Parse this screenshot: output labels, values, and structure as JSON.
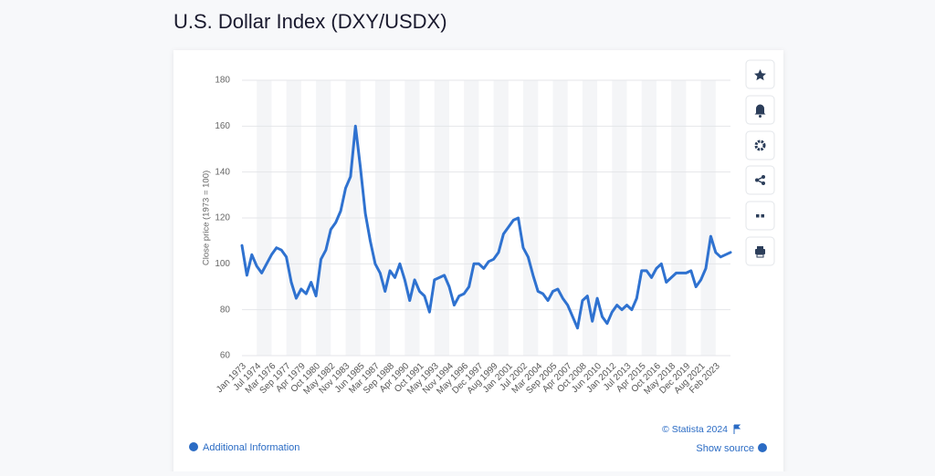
{
  "chart_data": {
    "type": "line",
    "title": "U.S. Dollar Index (DXY/USDX)",
    "ylabel": "Close price (1973 = 100)",
    "categories": [
      "Jan 1973",
      null,
      null,
      "Jul 1974",
      null,
      null,
      "Mar 1976",
      null,
      null,
      "Sep 1977",
      null,
      null,
      "Apr 1979",
      null,
      null,
      "Oct 1980",
      null,
      null,
      "May 1982",
      null,
      null,
      "Nov 1983",
      null,
      null,
      "Jun 1985",
      null,
      null,
      "Mar 1987",
      null,
      null,
      "Sep 1988",
      null,
      null,
      "Apr 1990",
      null,
      null,
      "Oct 1991",
      null,
      null,
      "May 1993",
      null,
      null,
      "Nov 1994",
      null,
      null,
      "May 1996",
      null,
      null,
      "Dec 1997",
      null,
      null,
      "Aug 1999",
      null,
      null,
      "Jan 2001",
      null,
      null,
      "Jul 2002",
      null,
      null,
      "Mar 2004",
      null,
      null,
      "Sep 2005",
      null,
      null,
      "Apr 2007",
      null,
      null,
      "Oct 2008",
      null,
      null,
      "Jun 2010",
      null,
      null,
      "Jan 2012",
      null,
      null,
      "Jul 2013",
      null,
      null,
      "Apr 2015",
      null,
      null,
      "Oct 2016",
      null,
      null,
      "May 2018",
      null,
      null,
      "Dec 2019",
      null,
      null,
      "Aug 2021",
      null,
      null,
      "Feb 2023",
      null,
      null,
      null
    ],
    "values": [
      108,
      95,
      104,
      99,
      96,
      100,
      104,
      107,
      106,
      103,
      92,
      85,
      89,
      87,
      92,
      86,
      102,
      106,
      115,
      118,
      123,
      133,
      138,
      160,
      142,
      122,
      110,
      100,
      96,
      88,
      97,
      94,
      100,
      93,
      84,
      93,
      88,
      86,
      79,
      93,
      94,
      95,
      90,
      82,
      86,
      87,
      90,
      100,
      100,
      98,
      101,
      102,
      105,
      113,
      116,
      119,
      120,
      107,
      103,
      95,
      88,
      87,
      84,
      88,
      89,
      85,
      82,
      77,
      72,
      84,
      86,
      75,
      85,
      77,
      74,
      79,
      82,
      80,
      82,
      80,
      85,
      97,
      97,
      94,
      98,
      100,
      92,
      94,
      96,
      96,
      96,
      97,
      90,
      93,
      98,
      112,
      105,
      103,
      104,
      105
    ],
    "color": "#2f72d0",
    "ylim": [
      60,
      180
    ],
    "yticks": [
      60,
      80,
      100,
      120,
      140,
      160,
      180
    ],
    "grid": true
  },
  "footer": {
    "credit": "© Statista 2024",
    "additional_info": "Additional Information",
    "show_source": "Show source"
  }
}
